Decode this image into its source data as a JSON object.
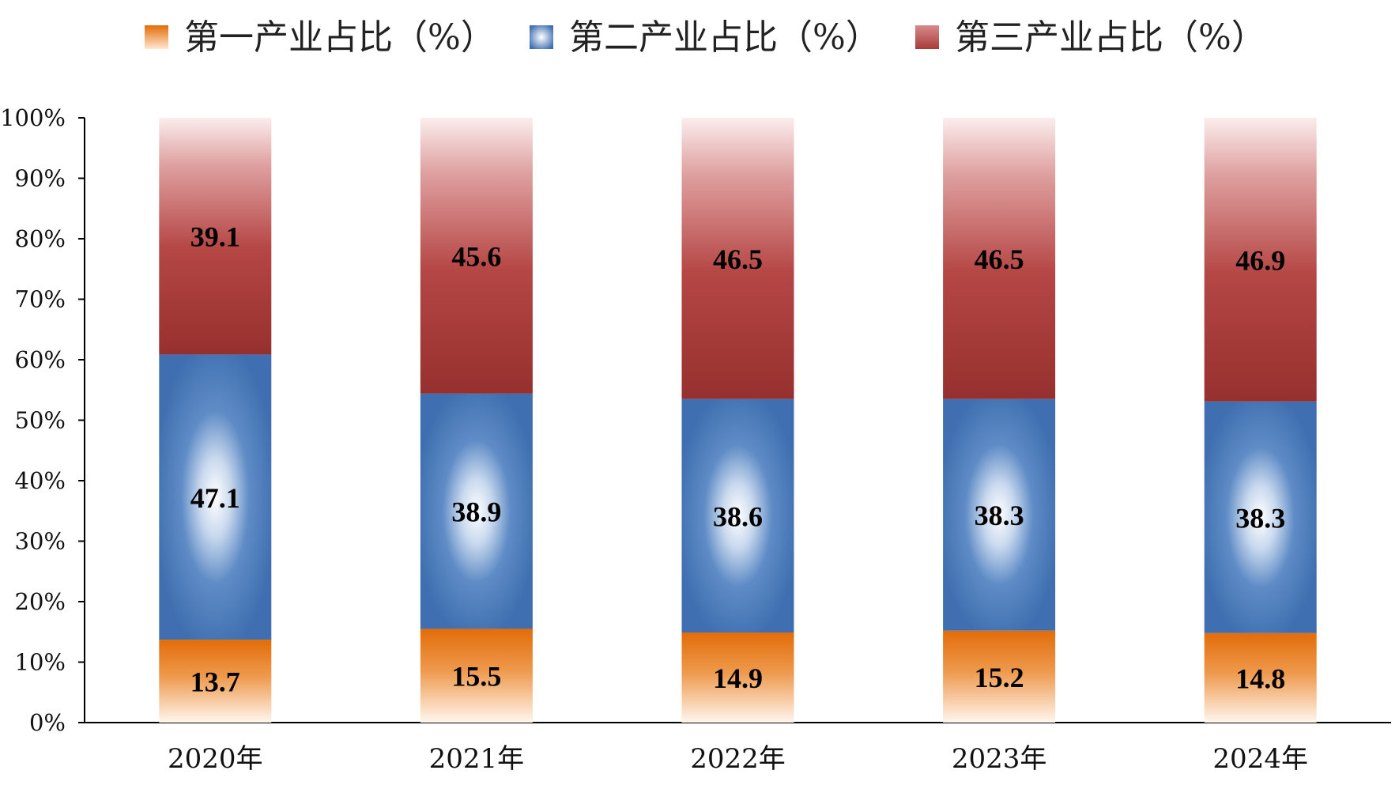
{
  "chart_data": {
    "type": "bar",
    "stacked": true,
    "percent_stacked": true,
    "categories": [
      "2020年",
      "2021年",
      "2022年",
      "2023年",
      "2024年"
    ],
    "series": [
      {
        "name": "第一产业占比（%）",
        "values": [
          13.7,
          15.5,
          14.9,
          15.2,
          14.8
        ],
        "color": "#E36C09"
      },
      {
        "name": "第二产业占比（%）",
        "values": [
          47.1,
          38.9,
          38.6,
          38.3,
          38.3
        ],
        "color": "#3F6FB0"
      },
      {
        "name": "第三产业占比（%）",
        "values": [
          39.1,
          45.6,
          46.5,
          46.5,
          46.9
        ],
        "color": "#A83A3A"
      }
    ],
    "y_ticks": [
      "0%",
      "10%",
      "20%",
      "30%",
      "40%",
      "50%",
      "60%",
      "70%",
      "80%",
      "90%",
      "100%"
    ],
    "ylim": [
      0,
      100
    ],
    "grid": false,
    "legend_position": "top",
    "title": "",
    "xlabel": "",
    "ylabel": ""
  }
}
